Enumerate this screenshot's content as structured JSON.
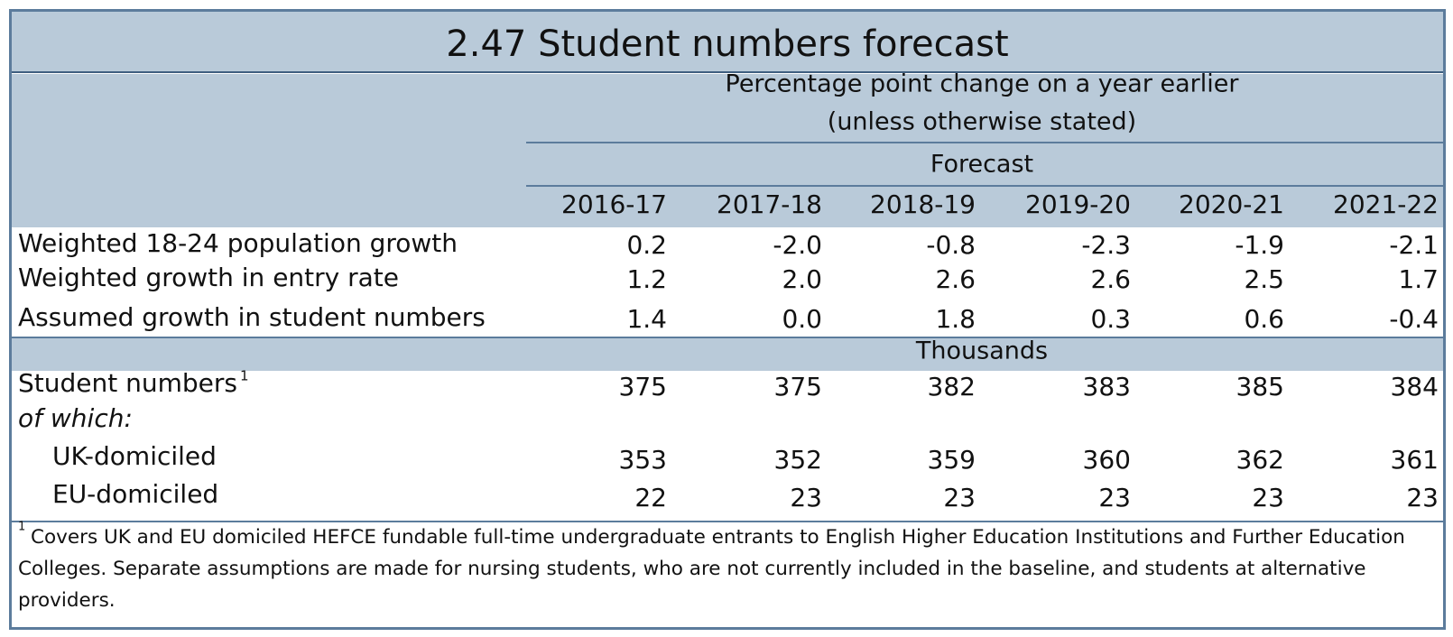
{
  "title": "2.47 Student numbers forecast",
  "header": {
    "unit_note": [
      "Percentage point change on a year earlier",
      "(unless otherwise stated)"
    ],
    "group": "Forecast",
    "columns": [
      "2016-17",
      "2017-18",
      "2018-19",
      "2019-20",
      "2020-21",
      "2021-22"
    ]
  },
  "table": {
    "rows": [
      {
        "label": "Weighted 18-24 population growth",
        "values": [
          "0.2",
          "-2.0",
          "-0.8",
          "-2.3",
          "-1.9",
          "-2.1"
        ]
      },
      {
        "label": "Weighted growth in entry rate",
        "values": [
          "1.2",
          "2.0",
          "2.6",
          "2.6",
          "2.5",
          "1.7"
        ]
      },
      {
        "label": "Assumed growth in student numbers",
        "values": [
          "1.4",
          "0.0",
          "1.8",
          "0.3",
          "0.6",
          "-0.4"
        ]
      }
    ]
  },
  "section": {
    "unit": "Thousands",
    "rows": [
      {
        "label": "Student numbers",
        "marker": "1",
        "values": [
          "375",
          "375",
          "382",
          "383",
          "385",
          "384"
        ]
      },
      {
        "label": "of which:",
        "values": []
      },
      {
        "label": "UK-domiciled",
        "values": [
          "353",
          "352",
          "359",
          "360",
          "362",
          "361"
        ]
      },
      {
        "label": "EU-domiciled",
        "values": [
          "22",
          "23",
          "23",
          "23",
          "23",
          "23"
        ]
      }
    ]
  },
  "footnote": {
    "marker": "1",
    "text": "Covers UK and EU domiciled HEFCE fundable full-time undergraduate entrants to English Higher Education Institutions and Further Education Colleges. Separate assumptions are made for nursing students, who are not currently included in the baseline, and students at alternative providers."
  }
}
